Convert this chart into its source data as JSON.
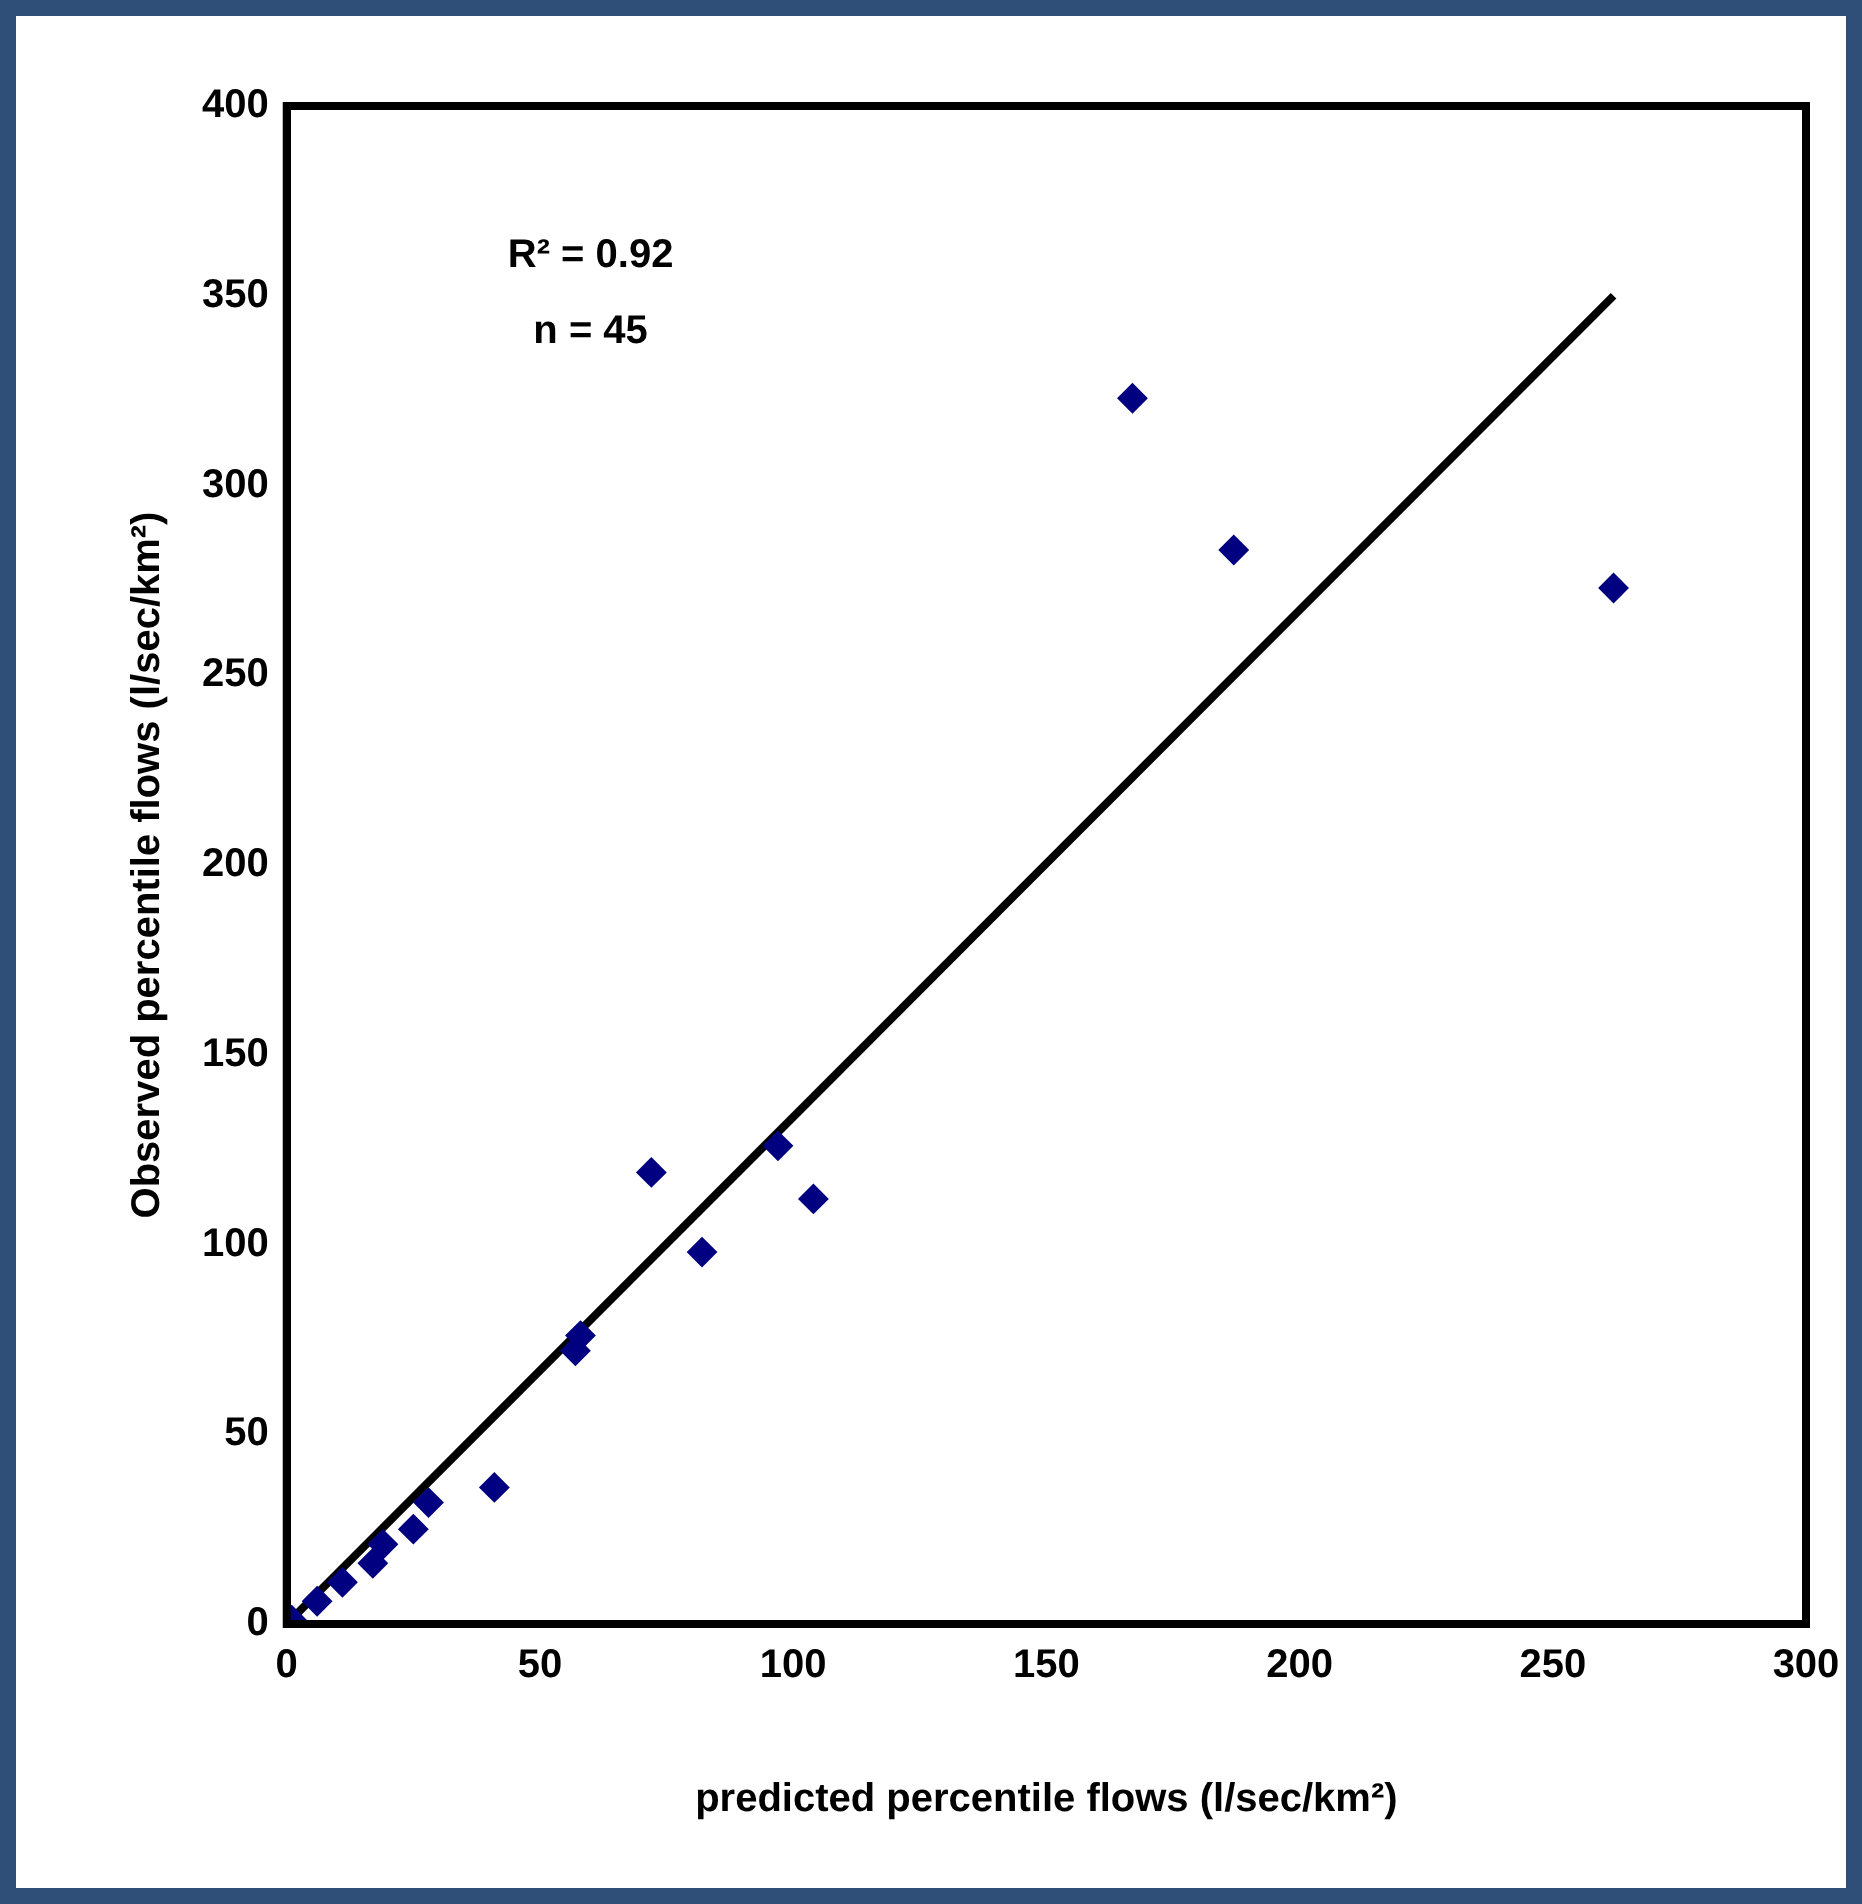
{
  "chart_data": {
    "type": "scatter",
    "xlabel": "predicted percentile flows (l/sec/km²)",
    "ylabel": "Observed percentile flows (l/sec/km²)",
    "annotations": [
      "R² = 0.92",
      "n = 45"
    ],
    "xlim": [
      0,
      300
    ],
    "xticks": [
      0,
      50,
      100,
      150,
      200,
      250,
      300
    ],
    "ylim": [
      0,
      400
    ],
    "yticks": [
      0,
      50,
      100,
      150,
      200,
      250,
      300,
      350,
      400
    ],
    "grid": false,
    "legend": false,
    "marker": "diamond",
    "series": [
      {
        "color": "#000080",
        "x": [
          1,
          6,
          11,
          17,
          19,
          25,
          28,
          41,
          57,
          58,
          72,
          82,
          97,
          104,
          167,
          187,
          262
        ],
        "values": [
          1,
          6,
          11,
          16,
          21,
          25,
          32,
          36,
          72,
          76,
          119,
          98,
          126,
          112,
          323,
          283,
          273
        ]
      },
      {
        "type": "line",
        "color": "#000000",
        "marker": "none",
        "x": [
          0,
          262
        ],
        "values": [
          0,
          350
        ]
      }
    ]
  }
}
